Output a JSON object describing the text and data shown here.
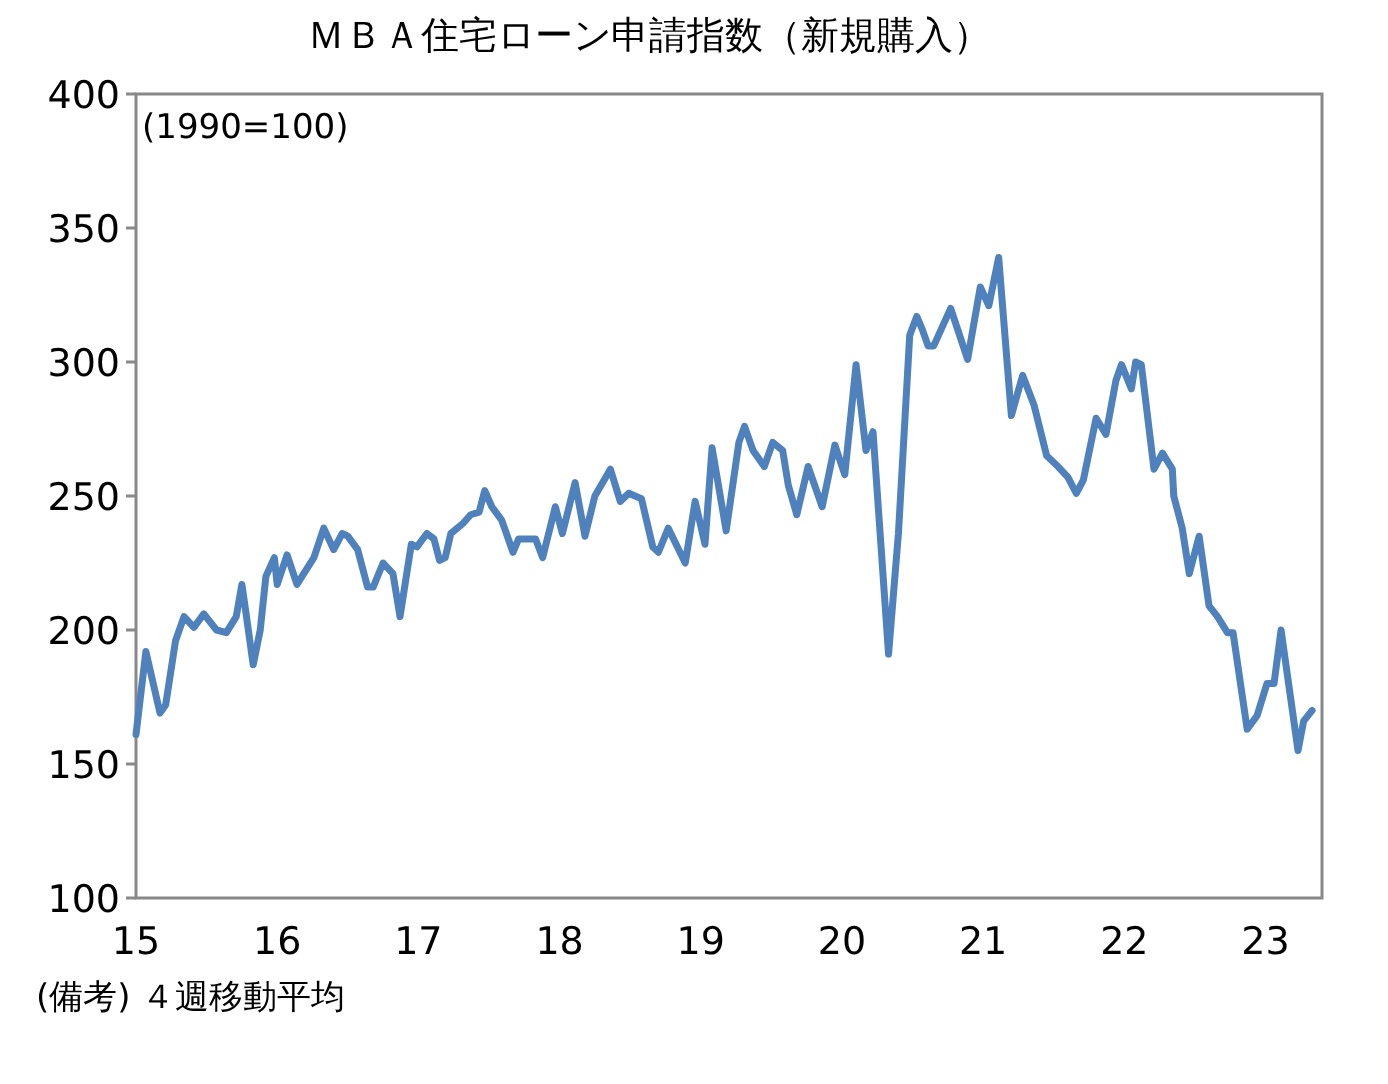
{
  "chart_data": {
    "type": "line",
    "title": "ＭＢＡ住宅ローン申請指数（新規購入）",
    "annotations": [
      "(1990=100)",
      "(備考) ４週移動平均"
    ],
    "xlim": [
      15,
      23.4
    ],
    "xticks": [
      15,
      16,
      17,
      18,
      19,
      20,
      21,
      22,
      23
    ],
    "ylim": [
      100,
      400
    ],
    "yticks": [
      100,
      150,
      200,
      250,
      300,
      350,
      400
    ],
    "grid": false,
    "marker": "none",
    "line_style": "solid",
    "series": [
      {
        "color": "#4f81bd",
        "x": [
          15.0,
          15.07,
          15.17,
          15.21,
          15.28,
          15.34,
          15.41,
          15.48,
          15.57,
          15.64,
          15.71,
          15.75,
          15.78,
          15.83,
          15.88,
          15.92,
          15.98,
          16.0,
          16.07,
          16.14,
          16.26,
          16.33,
          16.4,
          16.46,
          16.5,
          16.57,
          16.64,
          16.68,
          16.75,
          16.82,
          16.87,
          16.95,
          16.99,
          17.06,
          17.11,
          17.15,
          17.19,
          17.23,
          17.32,
          17.37,
          17.43,
          17.47,
          17.52,
          17.59,
          17.67,
          17.71,
          17.77,
          17.83,
          17.88,
          17.97,
          18.02,
          18.11,
          18.18,
          18.25,
          18.36,
          18.43,
          18.49,
          18.58,
          18.66,
          18.7,
          18.77,
          18.89,
          18.96,
          19.03,
          19.08,
          19.18,
          19.27,
          19.31,
          19.37,
          19.45,
          19.51,
          19.58,
          19.62,
          19.68,
          19.76,
          19.86,
          19.95,
          20.02,
          20.1,
          20.17,
          20.22,
          20.33,
          20.4,
          20.48,
          20.53,
          20.57,
          20.61,
          20.65,
          20.77,
          20.89,
          20.98,
          21.04,
          21.11,
          21.2,
          21.28,
          21.36,
          21.45,
          21.53,
          21.6,
          21.66,
          21.71,
          21.8,
          21.87,
          21.94,
          21.98,
          22.05,
          22.08,
          22.12,
          22.21,
          22.27,
          22.34,
          22.35,
          22.41,
          22.46,
          22.53,
          22.6,
          22.66,
          22.73,
          22.77,
          22.87,
          22.94,
          23.01,
          23.06,
          23.11,
          23.23,
          23.27,
          23.33
        ],
        "values": [
          161,
          192,
          169,
          172,
          196,
          205,
          201,
          206,
          200,
          199,
          205,
          217,
          206,
          187,
          200,
          220,
          227,
          217,
          228,
          217,
          227,
          238,
          230,
          236,
          235,
          230,
          216,
          216,
          225,
          221,
          205,
          232,
          231,
          236,
          234,
          226,
          227,
          236,
          240,
          243,
          244,
          252,
          246,
          241,
          229,
          234,
          234,
          234,
          227,
          246,
          236,
          255,
          235,
          250,
          260,
          248,
          251,
          249,
          231,
          229,
          238,
          225,
          248,
          232,
          268,
          237,
          270,
          276,
          267,
          261,
          270,
          267,
          254,
          243,
          261,
          246,
          269,
          258,
          299,
          267,
          274,
          191,
          236,
          310,
          317,
          312,
          306,
          306,
          320,
          301,
          328,
          321,
          339,
          280,
          295,
          284,
          265,
          261,
          257,
          251,
          256,
          279,
          273,
          293,
          299,
          290,
          300,
          299,
          260,
          266,
          260,
          250,
          238,
          221,
          235,
          209,
          205,
          199,
          199,
          163,
          168,
          180,
          180,
          200,
          155,
          166,
          170
        ]
      }
    ]
  }
}
